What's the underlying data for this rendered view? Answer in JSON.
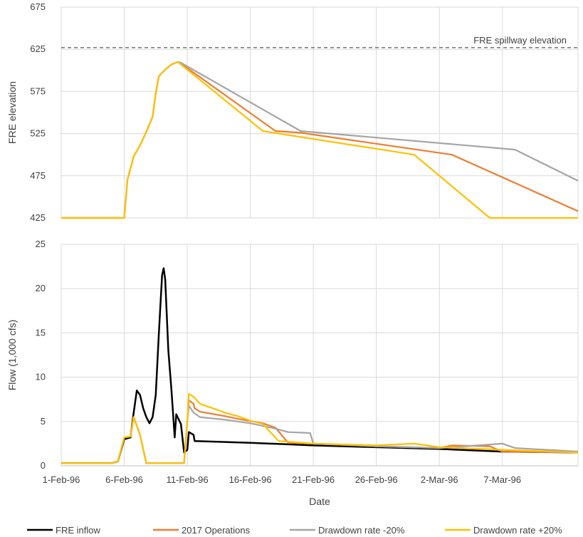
{
  "chart_data": [
    {
      "type": "line",
      "ylabel": "FRE elevation",
      "xlabel": "",
      "ylim": [
        425,
        675
      ],
      "yticks": [
        425,
        475,
        525,
        575,
        625,
        675
      ],
      "xlim": [
        "1996-02-01",
        "1996-03-13"
      ],
      "grid": true,
      "reference_line": {
        "label": "FRE spillway elevation",
        "value": 627,
        "style": "dashed",
        "color": "#7f7f7f"
      },
      "series": [
        {
          "name": "2017 Operations",
          "color": "#ED7D31",
          "points": [
            [
              "1996-02-01",
              425
            ],
            [
              "1996-02-06",
              425
            ],
            [
              "1996-02-06 06:00",
              470
            ],
            [
              "1996-02-06 18:00",
              498
            ],
            [
              "1996-02-07 06:00",
              511
            ],
            [
              "1996-02-07 18:00",
              527
            ],
            [
              "1996-02-08 06:00",
              545
            ],
            [
              "1996-02-08 12:00",
              573
            ],
            [
              "1996-02-08 18:00",
              593
            ],
            [
              "1996-02-09 06:00",
              601
            ],
            [
              "1996-02-09 18:00",
              607
            ],
            [
              "1996-02-10 06:00",
              610
            ],
            [
              "1996-02-10 12:00",
              608
            ],
            [
              "1996-02-18",
              528
            ],
            [
              "1996-02-20",
              526
            ],
            [
              "1996-03-03",
              500
            ],
            [
              "1996-03-13",
              433
            ]
          ]
        },
        {
          "name": "Drawdown rate -20%",
          "color": "#A5A5A5",
          "points": [
            [
              "1996-02-01",
              425
            ],
            [
              "1996-02-06",
              425
            ],
            [
              "1996-02-06 06:00",
              470
            ],
            [
              "1996-02-06 18:00",
              498
            ],
            [
              "1996-02-07 06:00",
              511
            ],
            [
              "1996-02-07 18:00",
              527
            ],
            [
              "1996-02-08 06:00",
              545
            ],
            [
              "1996-02-08 12:00",
              573
            ],
            [
              "1996-02-08 18:00",
              593
            ],
            [
              "1996-02-09 06:00",
              601
            ],
            [
              "1996-02-09 18:00",
              607
            ],
            [
              "1996-02-10 06:00",
              610
            ],
            [
              "1996-02-10 12:00",
              609
            ],
            [
              "1996-02-20",
              528
            ],
            [
              "1996-03-08",
              506
            ],
            [
              "1996-03-13",
              469
            ]
          ]
        },
        {
          "name": "Drawdown rate +20%",
          "color": "#FFC000",
          "points": [
            [
              "1996-02-01",
              425
            ],
            [
              "1996-02-06",
              425
            ],
            [
              "1996-02-06 06:00",
              470
            ],
            [
              "1996-02-06 18:00",
              498
            ],
            [
              "1996-02-07 06:00",
              511
            ],
            [
              "1996-02-07 18:00",
              527
            ],
            [
              "1996-02-08 06:00",
              545
            ],
            [
              "1996-02-08 12:00",
              573
            ],
            [
              "1996-02-08 18:00",
              593
            ],
            [
              "1996-02-09 06:00",
              601
            ],
            [
              "1996-02-09 18:00",
              607
            ],
            [
              "1996-02-10 06:00",
              610
            ],
            [
              "1996-02-10 12:00",
              607
            ],
            [
              "1996-02-17",
              528
            ],
            [
              "1996-02-29",
              500
            ],
            [
              "1996-03-06",
              425
            ],
            [
              "1996-03-13",
              425
            ]
          ]
        }
      ]
    },
    {
      "type": "line",
      "xlabel": "Date",
      "ylabel": "Flow (1,000 cfs)",
      "ylim": [
        0,
        25
      ],
      "yticks": [
        0,
        5,
        10,
        15,
        20,
        25
      ],
      "xlim": [
        "1996-02-01",
        "1996-03-13"
      ],
      "xticks": [
        "1-Feb-96",
        "6-Feb-96",
        "11-Feb-96",
        "16-Feb-96",
        "21-Feb-96",
        "26-Feb-96",
        "2-Mar-96",
        "7-Mar-96"
      ],
      "grid": true,
      "legend_position": "bottom",
      "series": [
        {
          "name": "FRE inflow",
          "color": "#000000",
          "points": [
            [
              "1996-02-01",
              0.3
            ],
            [
              "1996-02-05",
              0.3
            ],
            [
              "1996-02-05 12:00",
              0.5
            ],
            [
              "1996-02-06",
              3.0
            ],
            [
              "1996-02-06 12:00",
              3.2
            ],
            [
              "1996-02-06 18:00",
              6.0
            ],
            [
              "1996-02-07",
              8.5
            ],
            [
              "1996-02-07 06:00",
              8.0
            ],
            [
              "1996-02-07 12:00",
              6.5
            ],
            [
              "1996-02-07 18:00",
              5.5
            ],
            [
              "1996-02-08",
              4.8
            ],
            [
              "1996-02-08 06:00",
              5.5
            ],
            [
              "1996-02-08 12:00",
              8.0
            ],
            [
              "1996-02-08 18:00",
              15.0
            ],
            [
              "1996-02-09",
              21.5
            ],
            [
              "1996-02-09 03:00",
              22.3
            ],
            [
              "1996-02-09 06:00",
              21.0
            ],
            [
              "1996-02-09 12:00",
              13.0
            ],
            [
              "1996-02-09 18:00",
              8.5
            ],
            [
              "1996-02-10",
              3.2
            ],
            [
              "1996-02-10 03:00",
              5.8
            ],
            [
              "1996-02-10 12:00",
              4.7
            ],
            [
              "1996-02-10 18:00",
              1.5
            ],
            [
              "1996-02-11",
              1.8
            ],
            [
              "1996-02-11 03:00",
              3.8
            ],
            [
              "1996-02-11 12:00",
              3.5
            ],
            [
              "1996-02-11 14:00",
              2.8
            ],
            [
              "1996-02-16",
              2.6
            ],
            [
              "1996-02-21",
              2.3
            ],
            [
              "1996-02-26",
              2.1
            ],
            [
              "1996-03-02",
              1.9
            ],
            [
              "1996-03-07",
              1.6
            ],
            [
              "1996-03-13",
              1.5
            ]
          ]
        },
        {
          "name": "2017 Operations",
          "color": "#ED7D31",
          "points": [
            [
              "1996-02-01",
              0.3
            ],
            [
              "1996-02-05",
              0.3
            ],
            [
              "1996-02-05 12:00",
              0.5
            ],
            [
              "1996-02-06",
              3.2
            ],
            [
              "1996-02-06 12:00",
              3.3
            ],
            [
              "1996-02-06 18:00",
              5.5
            ],
            [
              "1996-02-07 06:00",
              3.5
            ],
            [
              "1996-02-07 18:00",
              0.3
            ],
            [
              "1996-02-10 18:00",
              0.3
            ],
            [
              "1996-02-11",
              5.0
            ],
            [
              "1996-02-11 03:00",
              7.4
            ],
            [
              "1996-02-11 12:00",
              7.0
            ],
            [
              "1996-02-11 14:00",
              6.5
            ],
            [
              "1996-02-12",
              6.1
            ],
            [
              "1996-02-14",
              5.6
            ],
            [
              "1996-02-15",
              5.3
            ],
            [
              "1996-02-17",
              4.8
            ],
            [
              "1996-02-18",
              4.3
            ],
            [
              "1996-02-19",
              2.6
            ],
            [
              "1996-02-21",
              2.5
            ],
            [
              "1996-02-26",
              2.2
            ],
            [
              "1996-03-02",
              2.0
            ],
            [
              "1996-03-03",
              2.3
            ],
            [
              "1996-03-06",
              2.2
            ],
            [
              "1996-03-07",
              1.6
            ],
            [
              "1996-03-13",
              1.5
            ]
          ]
        },
        {
          "name": "Drawdown rate -20%",
          "color": "#A5A5A5",
          "points": [
            [
              "1996-02-01",
              0.3
            ],
            [
              "1996-02-05",
              0.3
            ],
            [
              "1996-02-05 12:00",
              0.5
            ],
            [
              "1996-02-06",
              3.2
            ],
            [
              "1996-02-06 12:00",
              3.3
            ],
            [
              "1996-02-06 18:00",
              5.5
            ],
            [
              "1996-02-07 06:00",
              3.5
            ],
            [
              "1996-02-07 18:00",
              0.3
            ],
            [
              "1996-02-10 18:00",
              0.3
            ],
            [
              "1996-02-11",
              5.0
            ],
            [
              "1996-02-11 03:00",
              6.8
            ],
            [
              "1996-02-11 12:00",
              6.0
            ],
            [
              "1996-02-12",
              5.5
            ],
            [
              "1996-02-14",
              5.2
            ],
            [
              "1996-02-16",
              4.8
            ],
            [
              "1996-02-18",
              4.2
            ],
            [
              "1996-02-19",
              3.8
            ],
            [
              "1996-02-20 18:00",
              3.7
            ],
            [
              "1996-02-21",
              2.5
            ],
            [
              "1996-02-26",
              2.2
            ],
            [
              "1996-03-02",
              2.0
            ],
            [
              "1996-03-07",
              2.5
            ],
            [
              "1996-03-08",
              2.0
            ],
            [
              "1996-03-13",
              1.6
            ]
          ]
        },
        {
          "name": "Drawdown rate +20%",
          "color": "#FFC000",
          "points": [
            [
              "1996-02-01",
              0.3
            ],
            [
              "1996-02-05",
              0.3
            ],
            [
              "1996-02-05 12:00",
              0.5
            ],
            [
              "1996-02-06",
              3.2
            ],
            [
              "1996-02-06 12:00",
              3.3
            ],
            [
              "1996-02-06 18:00",
              5.5
            ],
            [
              "1996-02-07 06:00",
              3.5
            ],
            [
              "1996-02-07 18:00",
              0.3
            ],
            [
              "1996-02-10 18:00",
              0.3
            ],
            [
              "1996-02-11",
              5.0
            ],
            [
              "1996-02-11 03:00",
              8.1
            ],
            [
              "1996-02-11 12:00",
              7.8
            ],
            [
              "1996-02-12",
              7.0
            ],
            [
              "1996-02-13",
              6.5
            ],
            [
              "1996-02-14",
              6.0
            ],
            [
              "1996-02-15",
              5.6
            ],
            [
              "1996-02-16",
              5.1
            ],
            [
              "1996-02-17",
              4.7
            ],
            [
              "1996-02-18 06:00",
              2.8
            ],
            [
              "1996-02-21",
              2.5
            ],
            [
              "1996-02-26",
              2.3
            ],
            [
              "1996-02-29",
              2.5
            ],
            [
              "1996-03-02",
              2.1
            ],
            [
              "1996-03-07",
              1.8
            ],
            [
              "1996-03-13",
              1.5
            ]
          ]
        }
      ]
    }
  ]
}
